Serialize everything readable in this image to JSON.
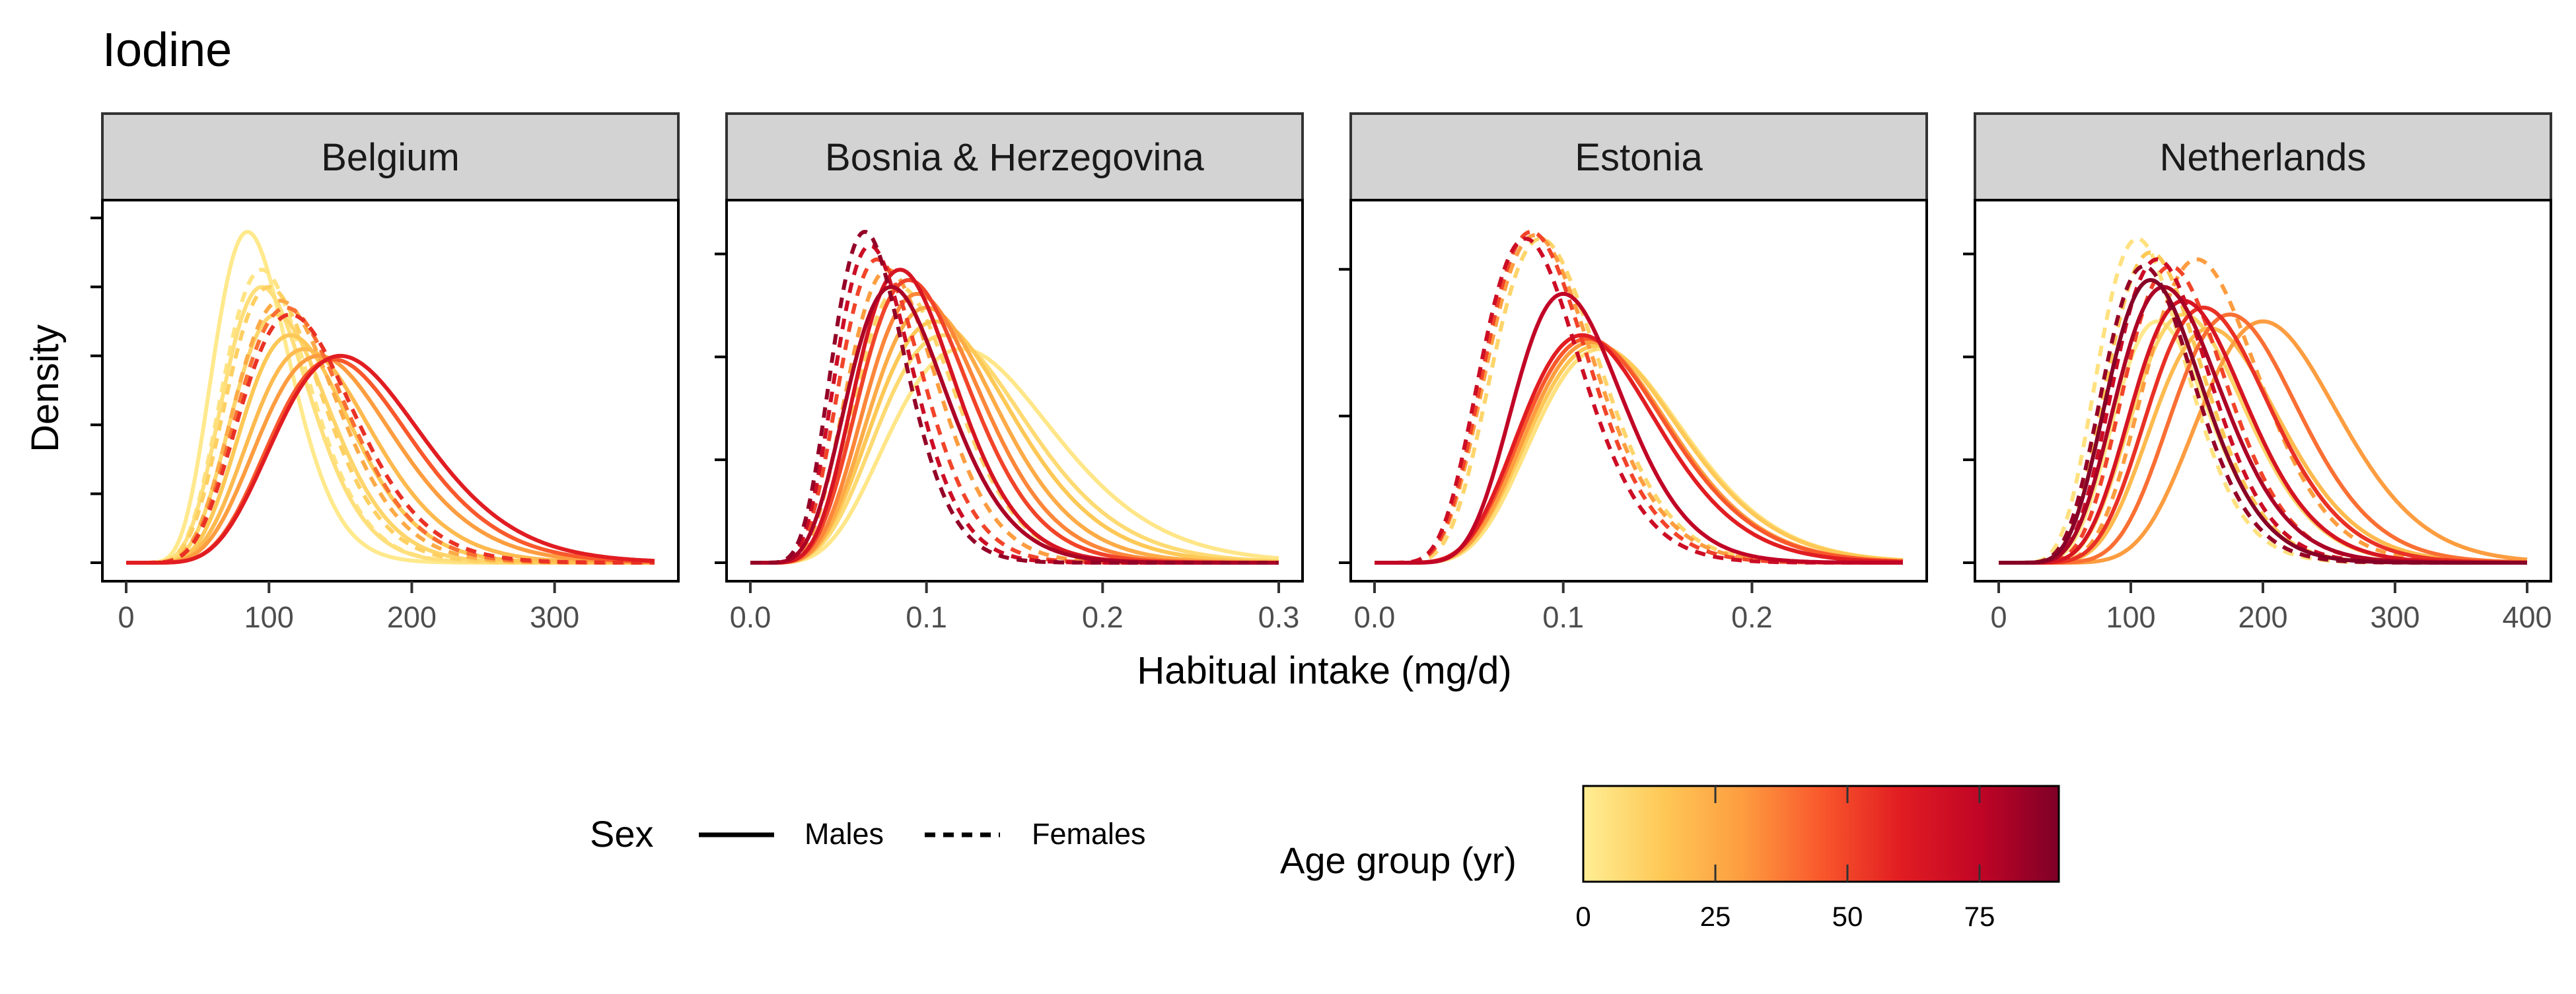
{
  "chart_data": {
    "type": "line",
    "title": "Iodine",
    "xlabel": "Habitual intake (mg/d)",
    "ylabel": "Density",
    "facet_labels_shown": true,
    "grid": false,
    "panels": [
      {
        "name": "Belgium",
        "xlim": [
          0,
          370
        ],
        "xticks": [
          0,
          100,
          200,
          300
        ],
        "xtick_labels": [
          "0",
          "100",
          "200",
          "300"
        ],
        "yticks_count": 6,
        "series": [
          {
            "sex": "Males",
            "age": 2,
            "mode": 85,
            "sd": 28,
            "peak": 0.96
          },
          {
            "sex": "Males",
            "age": 6,
            "mode": 95,
            "sd": 32,
            "peak": 0.8
          },
          {
            "sex": "Males",
            "age": 10,
            "mode": 105,
            "sd": 36,
            "peak": 0.72
          },
          {
            "sex": "Males",
            "age": 15,
            "mode": 115,
            "sd": 40,
            "peak": 0.66
          },
          {
            "sex": "Males",
            "age": 20,
            "mode": 125,
            "sd": 45,
            "peak": 0.62
          },
          {
            "sex": "Males",
            "age": 30,
            "mode": 135,
            "sd": 50,
            "peak": 0.6
          },
          {
            "sex": "Males",
            "age": 45,
            "mode": 145,
            "sd": 52,
            "peak": 0.59
          },
          {
            "sex": "Males",
            "age": 60,
            "mode": 150,
            "sd": 55,
            "peak": 0.6
          },
          {
            "sex": "Females",
            "age": 4,
            "mode": 95,
            "sd": 32,
            "peak": 0.85
          },
          {
            "sex": "Females",
            "age": 12,
            "mode": 100,
            "sd": 35,
            "peak": 0.8
          },
          {
            "sex": "Females",
            "age": 25,
            "mode": 108,
            "sd": 38,
            "peak": 0.76
          },
          {
            "sex": "Females",
            "age": 40,
            "mode": 112,
            "sd": 40,
            "peak": 0.74
          },
          {
            "sex": "Females",
            "age": 55,
            "mode": 115,
            "sd": 42,
            "peak": 0.72
          }
        ]
      },
      {
        "name": "Bosnia & Herzegovina",
        "xlim": [
          0,
          0.3
        ],
        "xticks": [
          0.0,
          0.1,
          0.2,
          0.3
        ],
        "xtick_labels": [
          "0.0",
          "0.1",
          "0.2",
          "0.3"
        ],
        "yticks_count": 4,
        "series": [
          {
            "sex": "Males",
            "age": 3,
            "mode": 0.12,
            "sd": 0.05,
            "peak": 0.62
          },
          {
            "sex": "Males",
            "age": 8,
            "mode": 0.11,
            "sd": 0.045,
            "peak": 0.66
          },
          {
            "sex": "Males",
            "age": 15,
            "mode": 0.105,
            "sd": 0.042,
            "peak": 0.7
          },
          {
            "sex": "Males",
            "age": 25,
            "mode": 0.1,
            "sd": 0.038,
            "peak": 0.74
          },
          {
            "sex": "Males",
            "age": 35,
            "mode": 0.095,
            "sd": 0.035,
            "peak": 0.78
          },
          {
            "sex": "Males",
            "age": 50,
            "mode": 0.09,
            "sd": 0.033,
            "peak": 0.82
          },
          {
            "sex": "Males",
            "age": 65,
            "mode": 0.085,
            "sd": 0.03,
            "peak": 0.85
          },
          {
            "sex": "Males",
            "age": 80,
            "mode": 0.08,
            "sd": 0.03,
            "peak": 0.8
          },
          {
            "sex": "Females",
            "age": 10,
            "mode": 0.085,
            "sd": 0.03,
            "peak": 0.8
          },
          {
            "sex": "Females",
            "age": 30,
            "mode": 0.078,
            "sd": 0.027,
            "peak": 0.85
          },
          {
            "sex": "Females",
            "age": 50,
            "mode": 0.072,
            "sd": 0.025,
            "peak": 0.88
          },
          {
            "sex": "Females",
            "age": 70,
            "mode": 0.068,
            "sd": 0.023,
            "peak": 0.92
          },
          {
            "sex": "Females",
            "age": 85,
            "mode": 0.065,
            "sd": 0.022,
            "peak": 0.96
          }
        ]
      },
      {
        "name": "Estonia",
        "xlim": [
          0,
          0.28
        ],
        "xticks": [
          0.0,
          0.1,
          0.2
        ],
        "xtick_labels": [
          "0.0",
          "0.1",
          "0.2"
        ],
        "yticks_count": 3,
        "series": [
          {
            "sex": "Males",
            "age": 5,
            "mode": 0.12,
            "sd": 0.042,
            "peak": 0.62
          },
          {
            "sex": "Males",
            "age": 15,
            "mode": 0.118,
            "sd": 0.042,
            "peak": 0.63
          },
          {
            "sex": "Males",
            "age": 30,
            "mode": 0.115,
            "sd": 0.04,
            "peak": 0.64
          },
          {
            "sex": "Males",
            "age": 45,
            "mode": 0.113,
            "sd": 0.04,
            "peak": 0.65
          },
          {
            "sex": "Males",
            "age": 60,
            "mode": 0.11,
            "sd": 0.038,
            "peak": 0.66
          },
          {
            "sex": "Males",
            "age": 75,
            "mode": 0.1,
            "sd": 0.03,
            "peak": 0.78
          },
          {
            "sex": "Females",
            "age": 10,
            "mode": 0.088,
            "sd": 0.03,
            "peak": 0.94
          },
          {
            "sex": "Females",
            "age": 30,
            "mode": 0.085,
            "sd": 0.03,
            "peak": 0.95
          },
          {
            "sex": "Females",
            "age": 50,
            "mode": 0.083,
            "sd": 0.029,
            "peak": 0.96
          },
          {
            "sex": "Females",
            "age": 70,
            "mode": 0.08,
            "sd": 0.028,
            "peak": 0.94
          }
        ]
      },
      {
        "name": "Netherlands",
        "xlim": [
          0,
          400
        ],
        "xticks": [
          0,
          100,
          200,
          300,
          400
        ],
        "xtick_labels": [
          "0",
          "100",
          "200",
          "300",
          "400"
        ],
        "yticks_count": 4,
        "series": [
          {
            "sex": "Males",
            "age": 2,
            "mode": 120,
            "sd": 38,
            "peak": 0.7
          },
          {
            "sex": "Males",
            "age": 10,
            "mode": 140,
            "sd": 45,
            "peak": 0.72
          },
          {
            "sex": "Males",
            "age": 20,
            "mode": 160,
            "sd": 50,
            "peak": 0.68
          },
          {
            "sex": "Males",
            "age": 30,
            "mode": 200,
            "sd": 55,
            "peak": 0.7
          },
          {
            "sex": "Males",
            "age": 40,
            "mode": 175,
            "sd": 50,
            "peak": 0.72
          },
          {
            "sex": "Males",
            "age": 55,
            "mode": 155,
            "sd": 48,
            "peak": 0.74
          },
          {
            "sex": "Males",
            "age": 65,
            "mode": 140,
            "sd": 45,
            "peak": 0.76
          },
          {
            "sex": "Males",
            "age": 80,
            "mode": 125,
            "sd": 42,
            "peak": 0.8
          },
          {
            "sex": "Males",
            "age": 88,
            "mode": 115,
            "sd": 38,
            "peak": 0.82
          },
          {
            "sex": "Females",
            "age": 5,
            "mode": 105,
            "sd": 35,
            "peak": 0.94
          },
          {
            "sex": "Females",
            "age": 15,
            "mode": 115,
            "sd": 38,
            "peak": 0.9
          },
          {
            "sex": "Females",
            "age": 30,
            "mode": 150,
            "sd": 45,
            "peak": 0.88
          },
          {
            "sex": "Females",
            "age": 50,
            "mode": 130,
            "sd": 40,
            "peak": 0.86
          },
          {
            "sex": "Females",
            "age": 70,
            "mode": 120,
            "sd": 38,
            "peak": 0.88
          },
          {
            "sex": "Females",
            "age": 85,
            "mode": 110,
            "sd": 36,
            "peak": 0.86
          }
        ]
      }
    ],
    "legend": {
      "placement": "bottom",
      "sex": {
        "title": "Sex",
        "entries": [
          {
            "label": "Males",
            "linetype": "solid"
          },
          {
            "label": "Females",
            "linetype": "dashed"
          }
        ]
      },
      "age": {
        "title": "Age group (yr)",
        "range": [
          0,
          90
        ],
        "ticks": [
          0,
          25,
          50,
          75
        ],
        "tick_labels": [
          "0",
          "25",
          "50",
          "75"
        ],
        "colors": [
          "#FFEE94",
          "#FEC856",
          "#FD9D40",
          "#F9582C",
          "#E11D22",
          "#C10526",
          "#7E0027"
        ]
      }
    },
    "colors": {
      "strip_fill": "#D3D3D3",
      "axis": "#000000",
      "tick_label": "#4D4D4D"
    }
  }
}
